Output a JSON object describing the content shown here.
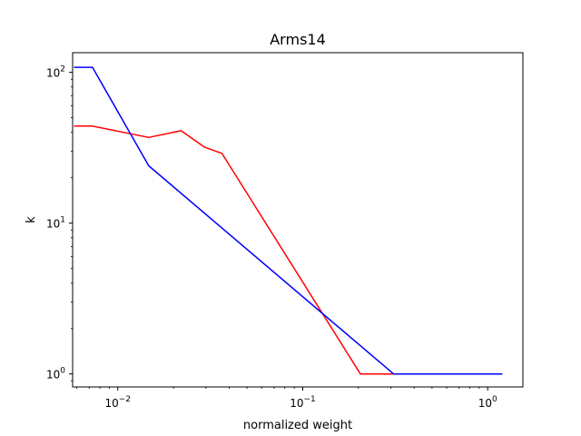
{
  "chart_data": {
    "type": "line",
    "title": "Arms14",
    "xlabel": "normalized weight",
    "ylabel": "k",
    "xscale": "log",
    "yscale": "log",
    "xlim": [
      0.0057,
      1.55
    ],
    "ylim": [
      0.82,
      135
    ],
    "grid": false,
    "legend": "none",
    "x_ticks": [
      {
        "value": 0.01,
        "base": "10",
        "exp": "−2"
      },
      {
        "value": 0.1,
        "base": "10",
        "exp": "−1"
      },
      {
        "value": 1,
        "base": "10",
        "exp": "0"
      }
    ],
    "y_ticks": [
      {
        "value": 1,
        "base": "10",
        "exp": "0"
      },
      {
        "value": 10,
        "base": "10",
        "exp": "1"
      },
      {
        "value": 100,
        "base": "10",
        "exp": "2"
      }
    ],
    "series": [
      {
        "color": "#ff0000",
        "points": [
          [
            0.0058,
            44
          ],
          [
            0.0073,
            44
          ],
          [
            0.0147,
            37
          ],
          [
            0.022,
            41
          ],
          [
            0.0293,
            32
          ],
          [
            0.0366,
            29
          ],
          [
            0.205,
            1
          ],
          [
            0.3,
            1
          ],
          [
            0.5,
            1
          ],
          [
            1.03,
            1
          ]
        ]
      },
      {
        "color": "#0000ff",
        "points": [
          [
            0.0058,
            108
          ],
          [
            0.0073,
            108
          ],
          [
            0.0147,
            24
          ],
          [
            0.31,
            1
          ],
          [
            0.6,
            1
          ],
          [
            1.2,
            1
          ]
        ]
      }
    ]
  }
}
